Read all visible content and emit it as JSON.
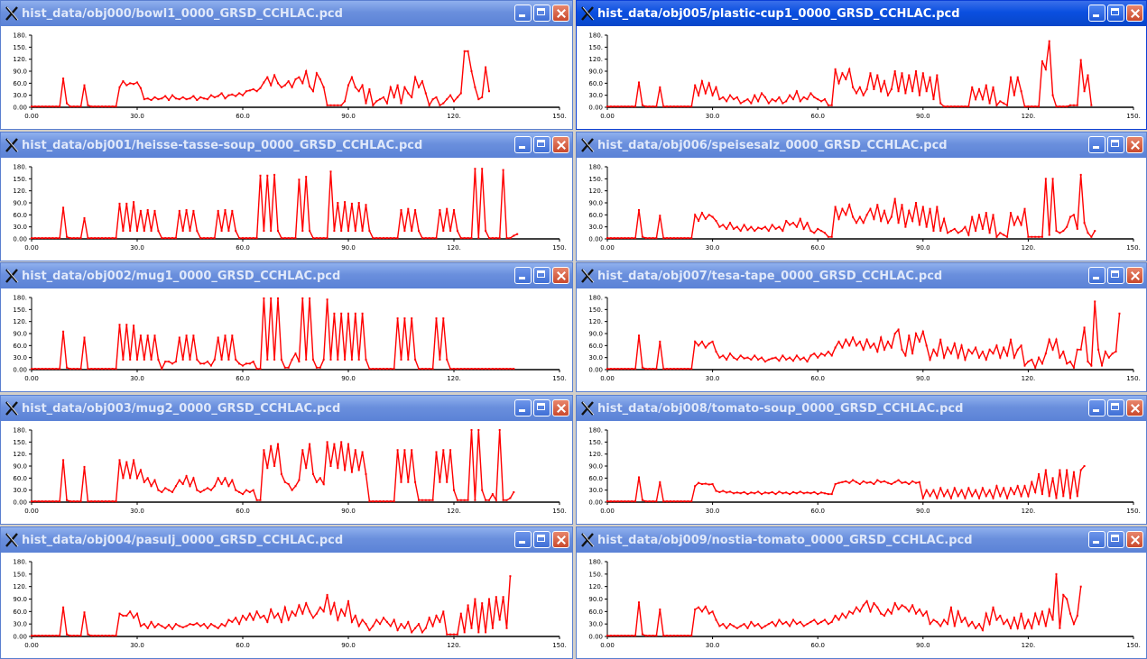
{
  "windows": [
    {
      "title": "hist_data/obj000/bowl1_0000_GRSD_CCHLAC.pcd",
      "active": false,
      "values": [
        2,
        2,
        2,
        2,
        2,
        2,
        2,
        2,
        2,
        72,
        10,
        2,
        2,
        2,
        2,
        55,
        5,
        2,
        2,
        2,
        2,
        2,
        2,
        2,
        2,
        50,
        65,
        55,
        60,
        58,
        62,
        48,
        20,
        22,
        18,
        25,
        20,
        22,
        28,
        18,
        30,
        22,
        20,
        25,
        20,
        22,
        28,
        18,
        25,
        22,
        20,
        30,
        25,
        28,
        35,
        22,
        30,
        32,
        28,
        35,
        30,
        40,
        42,
        45,
        40,
        48,
        62,
        75,
        55,
        80,
        60,
        50,
        55,
        65,
        50,
        70,
        75,
        60,
        90,
        52,
        40,
        85,
        70,
        50,
        5,
        5,
        5,
        5,
        5,
        15,
        55,
        75,
        50,
        40,
        55,
        10,
        45,
        5,
        15,
        20,
        25,
        10,
        50,
        25,
        55,
        10,
        50,
        35,
        25,
        75,
        50,
        65,
        35,
        5,
        20,
        25,
        5,
        10,
        20,
        30,
        15,
        25,
        35,
        140,
        140,
        90,
        50,
        20,
        25,
        100,
        40
      ],
      "xmax": 150,
      "ymax": 180
    },
    {
      "title": "hist_data/obj001/heisse-tasse-soup_0000_GRSD_CCHLAC.pcd",
      "active": false,
      "values": [
        2,
        2,
        2,
        2,
        2,
        2,
        2,
        2,
        2,
        78,
        5,
        2,
        2,
        2,
        2,
        52,
        2,
        2,
        2,
        2,
        2,
        2,
        2,
        2,
        2,
        88,
        20,
        88,
        20,
        92,
        20,
        70,
        20,
        72,
        20,
        70,
        20,
        2,
        2,
        2,
        2,
        2,
        70,
        20,
        72,
        20,
        70,
        20,
        2,
        2,
        2,
        2,
        2,
        70,
        20,
        72,
        20,
        70,
        20,
        2,
        2,
        2,
        2,
        2,
        2,
        158,
        20,
        158,
        20,
        160,
        20,
        2,
        2,
        2,
        2,
        2,
        148,
        20,
        155,
        20,
        2,
        2,
        2,
        2,
        2,
        168,
        20,
        90,
        20,
        92,
        20,
        88,
        20,
        90,
        20,
        85,
        20,
        2,
        2,
        2,
        2,
        2,
        2,
        2,
        2,
        72,
        20,
        75,
        20,
        72,
        20,
        2,
        2,
        2,
        2,
        2,
        72,
        20,
        75,
        20,
        72,
        20,
        2,
        2,
        2,
        2,
        175,
        2,
        175,
        20,
        2,
        2,
        2,
        2,
        172,
        2,
        2,
        8,
        12
      ],
      "xmax": 150,
      "ymax": 180
    },
    {
      "title": "hist_data/obj002/mug1_0000_GRSD_CCHLAC.pcd",
      "active": false,
      "values": [
        2,
        2,
        2,
        2,
        2,
        2,
        2,
        2,
        2,
        95,
        5,
        2,
        2,
        2,
        2,
        80,
        2,
        2,
        2,
        2,
        2,
        2,
        2,
        2,
        2,
        112,
        25,
        112,
        25,
        110,
        25,
        85,
        25,
        85,
        25,
        85,
        25,
        2,
        20,
        20,
        15,
        20,
        80,
        25,
        85,
        25,
        85,
        25,
        15,
        15,
        20,
        10,
        25,
        80,
        25,
        85,
        25,
        85,
        25,
        15,
        10,
        15,
        15,
        20,
        2,
        2,
        178,
        25,
        178,
        25,
        178,
        25,
        5,
        5,
        25,
        40,
        20,
        178,
        25,
        178,
        25,
        5,
        5,
        25,
        175,
        25,
        140,
        25,
        140,
        25,
        140,
        25,
        140,
        25,
        140,
        25,
        2,
        2,
        2,
        2,
        2,
        2,
        2,
        2,
        128,
        25,
        128,
        25,
        128,
        25,
        2,
        2,
        2,
        2,
        2,
        128,
        25,
        128,
        25,
        2,
        2,
        2,
        2,
        2,
        2,
        2,
        2,
        2,
        2,
        2,
        2,
        2,
        2,
        2,
        2,
        2,
        2,
        2
      ],
      "xmax": 150,
      "ymax": 180
    },
    {
      "title": "hist_data/obj003/mug2_0000_GRSD_CCHLAC.pcd",
      "active": false,
      "values": [
        2,
        2,
        2,
        2,
        2,
        2,
        2,
        2,
        2,
        105,
        5,
        2,
        2,
        2,
        2,
        88,
        2,
        2,
        2,
        2,
        2,
        2,
        2,
        2,
        2,
        105,
        60,
        100,
        60,
        105,
        60,
        80,
        50,
        60,
        40,
        55,
        30,
        25,
        35,
        30,
        25,
        40,
        55,
        45,
        65,
        40,
        60,
        30,
        25,
        30,
        35,
        30,
        40,
        60,
        45,
        60,
        40,
        55,
        30,
        25,
        20,
        30,
        25,
        30,
        5,
        5,
        130,
        85,
        140,
        90,
        145,
        70,
        50,
        45,
        30,
        40,
        55,
        130,
        85,
        145,
        70,
        50,
        60,
        45,
        150,
        90,
        145,
        85,
        150,
        80,
        145,
        75,
        130,
        80,
        125,
        70,
        2,
        2,
        2,
        2,
        2,
        2,
        2,
        2,
        130,
        50,
        130,
        50,
        130,
        50,
        5,
        5,
        5,
        5,
        5,
        125,
        50,
        130,
        50,
        130,
        30,
        5,
        5,
        5,
        5,
        180,
        5,
        180,
        30,
        5,
        5,
        20,
        5,
        180,
        5,
        5,
        10,
        25
      ],
      "xmax": 150,
      "ymax": 180
    },
    {
      "title": "hist_data/obj004/pasulj_0000_GRSD_CCHLAC.pcd",
      "active": false,
      "values": [
        2,
        2,
        2,
        2,
        2,
        2,
        2,
        2,
        2,
        70,
        5,
        2,
        2,
        2,
        2,
        58,
        5,
        2,
        2,
        2,
        2,
        2,
        2,
        2,
        2,
        55,
        50,
        50,
        60,
        45,
        55,
        25,
        30,
        20,
        35,
        22,
        30,
        25,
        20,
        28,
        18,
        30,
        25,
        22,
        25,
        30,
        28,
        32,
        25,
        30,
        20,
        30,
        25,
        20,
        30,
        25,
        40,
        35,
        45,
        30,
        50,
        40,
        55,
        40,
        60,
        45,
        50,
        35,
        65,
        45,
        55,
        35,
        70,
        40,
        60,
        50,
        75,
        55,
        80,
        60,
        45,
        55,
        70,
        60,
        100,
        55,
        80,
        40,
        65,
        50,
        85,
        35,
        50,
        25,
        40,
        30,
        15,
        25,
        40,
        30,
        45,
        35,
        25,
        40,
        15,
        30,
        20,
        35,
        10,
        20,
        30,
        10,
        20,
        45,
        25,
        50,
        35,
        60,
        5,
        5,
        5,
        5,
        55,
        10,
        75,
        20,
        90,
        10,
        80,
        10,
        90,
        20,
        95,
        40,
        95,
        20,
        145
      ],
      "xmax": 150,
      "ymax": 180
    },
    {
      "title": "hist_data/obj005/plastic-cup1_0000_GRSD_CCHLAC.pcd",
      "active": true,
      "values": [
        2,
        2,
        2,
        2,
        2,
        2,
        2,
        2,
        2,
        62,
        5,
        2,
        2,
        2,
        2,
        50,
        2,
        2,
        2,
        2,
        2,
        2,
        2,
        2,
        2,
        55,
        30,
        65,
        35,
        60,
        30,
        50,
        20,
        25,
        15,
        30,
        20,
        25,
        10,
        15,
        20,
        10,
        30,
        15,
        35,
        25,
        10,
        20,
        15,
        25,
        10,
        15,
        30,
        20,
        40,
        15,
        25,
        20,
        35,
        25,
        20,
        15,
        20,
        5,
        5,
        95,
        60,
        85,
        70,
        95,
        50,
        35,
        50,
        30,
        45,
        85,
        45,
        80,
        40,
        65,
        30,
        45,
        90,
        40,
        85,
        35,
        80,
        40,
        90,
        30,
        85,
        40,
        75,
        20,
        80,
        10,
        2,
        2,
        2,
        2,
        2,
        2,
        2,
        2,
        50,
        20,
        45,
        20,
        55,
        10,
        50,
        5,
        15,
        10,
        5,
        75,
        30,
        75,
        40,
        2,
        2,
        2,
        2,
        2,
        115,
        95,
        165,
        30,
        2,
        2,
        2,
        2,
        5,
        5,
        5,
        118,
        40,
        80,
        5
      ],
      "xmax": 150,
      "ymax": 180
    },
    {
      "title": "hist_data/obj006/speisesalz_0000_GRSD_CCHLAC.pcd",
      "active": false,
      "values": [
        2,
        2,
        2,
        2,
        2,
        2,
        2,
        2,
        2,
        72,
        5,
        2,
        2,
        2,
        2,
        58,
        2,
        2,
        2,
        2,
        2,
        2,
        2,
        2,
        2,
        60,
        45,
        65,
        50,
        60,
        55,
        45,
        30,
        35,
        25,
        40,
        25,
        30,
        20,
        35,
        22,
        30,
        20,
        28,
        25,
        30,
        20,
        35,
        25,
        30,
        20,
        45,
        35,
        40,
        30,
        50,
        25,
        40,
        20,
        15,
        25,
        20,
        15,
        5,
        5,
        80,
        50,
        75,
        60,
        85,
        55,
        40,
        55,
        40,
        60,
        75,
        50,
        85,
        45,
        70,
        40,
        55,
        100,
        40,
        85,
        30,
        70,
        45,
        90,
        35,
        80,
        30,
        75,
        20,
        80,
        20,
        50,
        15,
        20,
        25,
        15,
        20,
        30,
        10,
        55,
        20,
        60,
        25,
        65,
        15,
        60,
        5,
        15,
        10,
        5,
        65,
        35,
        55,
        35,
        75,
        5,
        5,
        5,
        5,
        5,
        150,
        10,
        150,
        20,
        15,
        20,
        30,
        55,
        60,
        25,
        160,
        40,
        15,
        5,
        20
      ],
      "xmax": 150,
      "ymax": 180
    },
    {
      "title": "hist_data/obj007/tesa-tape_0000_GRSD_CCHLAC.pcd",
      "active": false,
      "values": [
        2,
        2,
        2,
        2,
        2,
        2,
        2,
        2,
        2,
        85,
        5,
        2,
        2,
        2,
        2,
        70,
        2,
        2,
        2,
        2,
        2,
        2,
        2,
        2,
        2,
        70,
        60,
        70,
        55,
        65,
        70,
        45,
        30,
        35,
        25,
        40,
        30,
        25,
        35,
        28,
        30,
        25,
        35,
        25,
        30,
        20,
        25,
        28,
        30,
        22,
        35,
        25,
        30,
        22,
        35,
        25,
        30,
        20,
        35,
        40,
        30,
        40,
        35,
        45,
        35,
        55,
        70,
        55,
        75,
        60,
        80,
        60,
        70,
        50,
        75,
        55,
        65,
        45,
        80,
        50,
        70,
        55,
        90,
        100,
        50,
        35,
        85,
        40,
        90,
        70,
        95,
        60,
        25,
        50,
        35,
        75,
        30,
        55,
        40,
        65,
        30,
        60,
        25,
        50,
        40,
        55,
        30,
        45,
        25,
        50,
        40,
        60,
        30,
        55,
        35,
        75,
        30,
        50,
        60,
        10,
        20,
        25,
        5,
        30,
        15,
        40,
        75,
        50,
        75,
        30,
        45,
        15,
        20,
        5,
        50,
        50,
        105,
        20,
        10,
        170,
        50,
        10,
        45,
        30,
        40,
        45,
        140
      ],
      "xmax": 150,
      "ymax": 180
    },
    {
      "title": "hist_data/obj008/tomato-soup_0000_GRSD_CCHLAC.pcd",
      "active": false,
      "values": [
        2,
        2,
        2,
        2,
        2,
        2,
        2,
        2,
        2,
        62,
        5,
        2,
        2,
        2,
        2,
        50,
        2,
        2,
        2,
        2,
        2,
        2,
        2,
        2,
        2,
        40,
        48,
        45,
        46,
        44,
        45,
        28,
        25,
        28,
        24,
        26,
        22,
        24,
        22,
        25,
        20,
        24,
        22,
        26,
        20,
        24,
        22,
        25,
        20,
        26,
        22,
        24,
        20,
        25,
        22,
        26,
        22,
        24,
        22,
        25,
        20,
        24,
        22,
        20,
        20,
        45,
        48,
        50,
        52,
        48,
        55,
        50,
        45,
        52,
        48,
        50,
        45,
        55,
        50,
        52,
        48,
        45,
        50,
        55,
        48,
        50,
        45,
        52,
        48,
        50,
        10,
        30,
        15,
        30,
        10,
        35,
        15,
        30,
        10,
        35,
        15,
        30,
        10,
        35,
        15,
        30,
        10,
        35,
        15,
        30,
        10,
        40,
        15,
        35,
        10,
        35,
        20,
        40,
        15,
        40,
        15,
        50,
        25,
        70,
        20,
        80,
        15,
        60,
        10,
        80,
        15,
        80,
        10,
        75,
        15,
        80,
        90
      ],
      "xmax": 150,
      "ymax": 180
    },
    {
      "title": "hist_data/obj009/nostia-tomato_0000_GRSD_CCHLAC.pcd",
      "active": false,
      "values": [
        2,
        2,
        2,
        2,
        2,
        2,
        2,
        2,
        2,
        82,
        5,
        2,
        2,
        2,
        2,
        65,
        2,
        2,
        2,
        2,
        2,
        2,
        2,
        2,
        2,
        65,
        70,
        60,
        72,
        55,
        60,
        40,
        25,
        30,
        20,
        30,
        25,
        20,
        25,
        30,
        20,
        35,
        25,
        30,
        20,
        25,
        30,
        35,
        25,
        40,
        30,
        35,
        25,
        40,
        30,
        35,
        25,
        30,
        35,
        40,
        30,
        35,
        40,
        30,
        35,
        50,
        40,
        55,
        45,
        60,
        55,
        70,
        60,
        75,
        85,
        60,
        80,
        70,
        55,
        50,
        65,
        55,
        80,
        65,
        75,
        70,
        60,
        75,
        55,
        65,
        50,
        60,
        30,
        40,
        35,
        25,
        40,
        30,
        70,
        25,
        60,
        35,
        45,
        25,
        35,
        20,
        30,
        15,
        55,
        30,
        70,
        40,
        50,
        30,
        40,
        20,
        45,
        20,
        55,
        20,
        40,
        20,
        55,
        30,
        60,
        25,
        65,
        40,
        150,
        20,
        100,
        90,
        55,
        30,
        50,
        120
      ],
      "xmax": 150,
      "ymax": 180
    }
  ],
  "axis": {
    "yticks": [
      "0.00",
      "30.0",
      "60.0",
      "90.0",
      "120.",
      "150.",
      "180."
    ],
    "xticks": [
      "0.00",
      "30.0",
      "60.0",
      "90.0",
      "120.",
      "150."
    ]
  },
  "colors": {
    "line": "#ff0000",
    "axis": "#000000"
  },
  "icons": {
    "app": "x-window-icon",
    "min": "minimize-icon",
    "max": "maximize-icon",
    "close": "close-icon"
  }
}
